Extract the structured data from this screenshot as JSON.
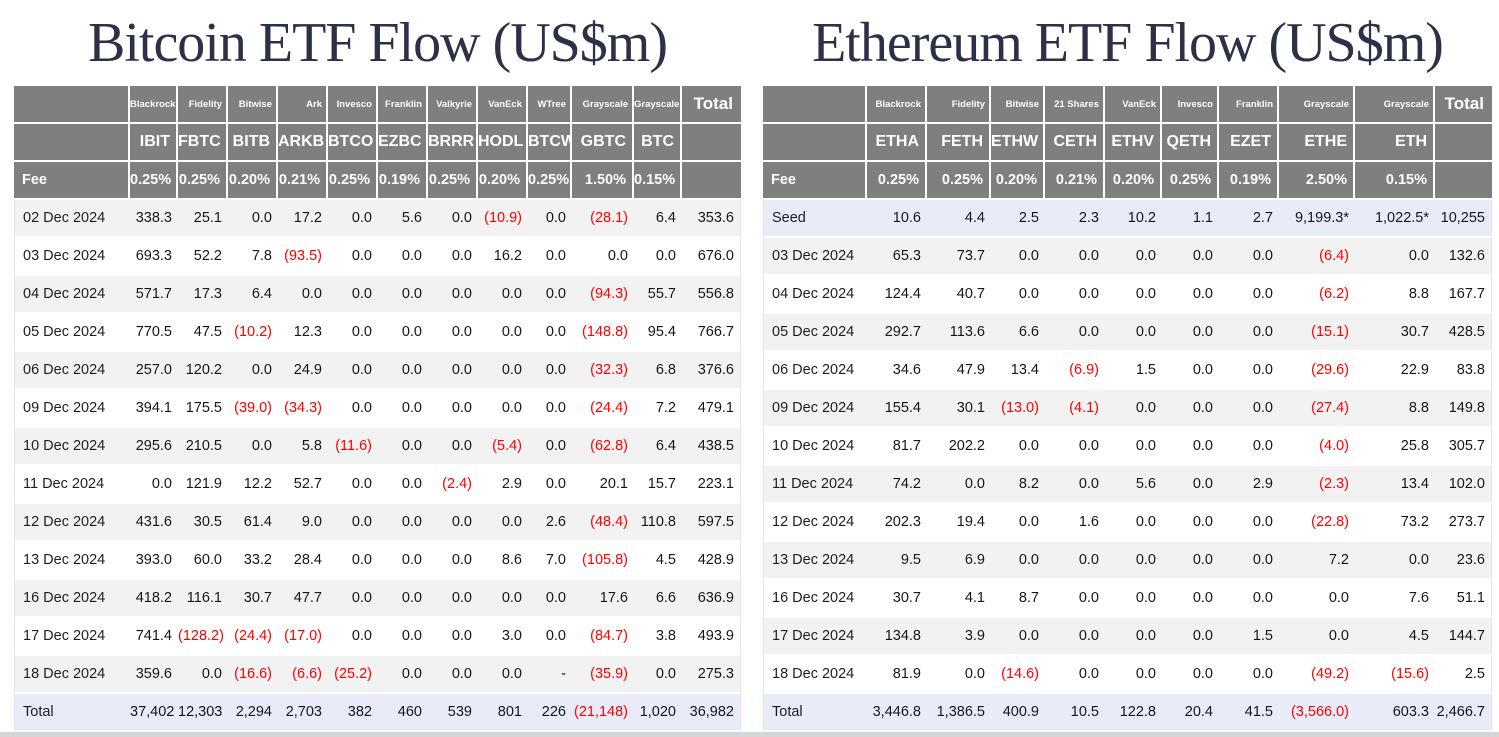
{
  "colors": {
    "title": "#2c3147",
    "header_bg": "#7f7f7f",
    "stripe_row": "#f2f2f2",
    "highlight_row": "#e8ecf8",
    "negative": "#ff0000",
    "divider": "#d5d5d5"
  },
  "chart_data": [
    {
      "type": "table",
      "title": "Bitcoin ETF Flow (US$m)",
      "header_rows": [
        [
          "",
          "Blackrock",
          "Fidelity",
          "Bitwise",
          "Ark",
          "Invesco",
          "Franklin",
          "Valkyrie",
          "VanEck",
          "WTree",
          "Grayscale",
          "Grayscale",
          "Total"
        ],
        [
          "",
          "IBIT",
          "FBTC",
          "BITB",
          "ARKB",
          "BTCO",
          "EZBC",
          "BRRR",
          "HODL",
          "BTCW",
          "GBTC",
          "BTC",
          ""
        ],
        [
          "Fee",
          "0.25%",
          "0.25%",
          "0.20%",
          "0.21%",
          "0.25%",
          "0.19%",
          "0.25%",
          "0.20%",
          "0.25%",
          "1.50%",
          "0.15%",
          ""
        ]
      ],
      "rows": [
        {
          "label": "02 Dec 2024",
          "values": [
            "338.3",
            "25.1",
            "0.0",
            "17.2",
            "0.0",
            "5.6",
            "0.0",
            "(10.9)",
            "0.0",
            "(28.1)",
            "6.4",
            "353.6"
          ]
        },
        {
          "label": "03 Dec 2024",
          "values": [
            "693.3",
            "52.2",
            "7.8",
            "(93.5)",
            "0.0",
            "0.0",
            "0.0",
            "16.2",
            "0.0",
            "0.0",
            "0.0",
            "676.0"
          ]
        },
        {
          "label": "04 Dec 2024",
          "values": [
            "571.7",
            "17.3",
            "6.4",
            "0.0",
            "0.0",
            "0.0",
            "0.0",
            "0.0",
            "0.0",
            "(94.3)",
            "55.7",
            "556.8"
          ]
        },
        {
          "label": "05 Dec 2024",
          "values": [
            "770.5",
            "47.5",
            "(10.2)",
            "12.3",
            "0.0",
            "0.0",
            "0.0",
            "0.0",
            "0.0",
            "(148.8)",
            "95.4",
            "766.7"
          ]
        },
        {
          "label": "06 Dec 2024",
          "values": [
            "257.0",
            "120.2",
            "0.0",
            "24.9",
            "0.0",
            "0.0",
            "0.0",
            "0.0",
            "0.0",
            "(32.3)",
            "6.8",
            "376.6"
          ]
        },
        {
          "label": "09 Dec 2024",
          "values": [
            "394.1",
            "175.5",
            "(39.0)",
            "(34.3)",
            "0.0",
            "0.0",
            "0.0",
            "0.0",
            "0.0",
            "(24.4)",
            "7.2",
            "479.1"
          ]
        },
        {
          "label": "10 Dec 2024",
          "values": [
            "295.6",
            "210.5",
            "0.0",
            "5.8",
            "(11.6)",
            "0.0",
            "0.0",
            "(5.4)",
            "0.0",
            "(62.8)",
            "6.4",
            "438.5"
          ]
        },
        {
          "label": "11 Dec 2024",
          "values": [
            "0.0",
            "121.9",
            "12.2",
            "52.7",
            "0.0",
            "0.0",
            "(2.4)",
            "2.9",
            "0.0",
            "20.1",
            "15.7",
            "223.1"
          ]
        },
        {
          "label": "12 Dec 2024",
          "values": [
            "431.6",
            "30.5",
            "61.4",
            "9.0",
            "0.0",
            "0.0",
            "0.0",
            "0.0",
            "2.6",
            "(48.4)",
            "110.8",
            "597.5"
          ]
        },
        {
          "label": "13 Dec 2024",
          "values": [
            "393.0",
            "60.0",
            "33.2",
            "28.4",
            "0.0",
            "0.0",
            "0.0",
            "8.6",
            "7.0",
            "(105.8)",
            "4.5",
            "428.9"
          ]
        },
        {
          "label": "16 Dec 2024",
          "values": [
            "418.2",
            "116.1",
            "30.7",
            "47.7",
            "0.0",
            "0.0",
            "0.0",
            "0.0",
            "0.0",
            "17.6",
            "6.6",
            "636.9"
          ]
        },
        {
          "label": "17 Dec 2024",
          "values": [
            "741.4",
            "(128.2)",
            "(24.4)",
            "(17.0)",
            "0.0",
            "0.0",
            "0.0",
            "3.0",
            "0.0",
            "(84.7)",
            "3.8",
            "493.9"
          ]
        },
        {
          "label": "18 Dec 2024",
          "values": [
            "359.6",
            "0.0",
            "(16.6)",
            "(6.6)",
            "(25.2)",
            "0.0",
            "0.0",
            "0.0",
            "-",
            "(35.9)",
            "0.0",
            "275.3"
          ]
        }
      ],
      "total_row": {
        "label": "Total",
        "values": [
          "37,402",
          "12,303",
          "2,294",
          "2,703",
          "382",
          "460",
          "539",
          "801",
          "226",
          "(21,148)",
          "1,020",
          "36,982"
        ]
      }
    },
    {
      "type": "table",
      "title": "Ethereum ETF Flow (US$m)",
      "header_rows": [
        [
          "",
          "Blackrock",
          "Fidelity",
          "Bitwise",
          "21 Shares",
          "VanEck",
          "Invesco",
          "Franklin",
          "Grayscale",
          "Grayscale",
          "Total"
        ],
        [
          "",
          "ETHA",
          "FETH",
          "ETHW",
          "CETH",
          "ETHV",
          "QETH",
          "EZET",
          "ETHE",
          "ETH",
          ""
        ],
        [
          "Fee",
          "0.25%",
          "0.25%",
          "0.20%",
          "0.21%",
          "0.20%",
          "0.25%",
          "0.19%",
          "2.50%",
          "0.15%",
          ""
        ]
      ],
      "rows": [
        {
          "label": "Seed",
          "values": [
            "10.6",
            "4.4",
            "2.5",
            "2.3",
            "10.2",
            "1.1",
            "2.7",
            "9,199.3*",
            "1,022.5*",
            "10,255"
          ]
        },
        {
          "label": "03 Dec 2024",
          "values": [
            "65.3",
            "73.7",
            "0.0",
            "0.0",
            "0.0",
            "0.0",
            "0.0",
            "(6.4)",
            "0.0",
            "132.6"
          ]
        },
        {
          "label": "04 Dec 2024",
          "values": [
            "124.4",
            "40.7",
            "0.0",
            "0.0",
            "0.0",
            "0.0",
            "0.0",
            "(6.2)",
            "8.8",
            "167.7"
          ]
        },
        {
          "label": "05 Dec 2024",
          "values": [
            "292.7",
            "113.6",
            "6.6",
            "0.0",
            "0.0",
            "0.0",
            "0.0",
            "(15.1)",
            "30.7",
            "428.5"
          ]
        },
        {
          "label": "06 Dec 2024",
          "values": [
            "34.6",
            "47.9",
            "13.4",
            "(6.9)",
            "1.5",
            "0.0",
            "0.0",
            "(29.6)",
            "22.9",
            "83.8"
          ]
        },
        {
          "label": "09 Dec 2024",
          "values": [
            "155.4",
            "30.1",
            "(13.0)",
            "(4.1)",
            "0.0",
            "0.0",
            "0.0",
            "(27.4)",
            "8.8",
            "149.8"
          ]
        },
        {
          "label": "10 Dec 2024",
          "values": [
            "81.7",
            "202.2",
            "0.0",
            "0.0",
            "0.0",
            "0.0",
            "0.0",
            "(4.0)",
            "25.8",
            "305.7"
          ]
        },
        {
          "label": "11 Dec 2024",
          "values": [
            "74.2",
            "0.0",
            "8.2",
            "0.0",
            "5.6",
            "0.0",
            "2.9",
            "(2.3)",
            "13.4",
            "102.0"
          ]
        },
        {
          "label": "12 Dec 2024",
          "values": [
            "202.3",
            "19.4",
            "0.0",
            "1.6",
            "0.0",
            "0.0",
            "0.0",
            "(22.8)",
            "73.2",
            "273.7"
          ]
        },
        {
          "label": "13 Dec 2024",
          "values": [
            "9.5",
            "6.9",
            "0.0",
            "0.0",
            "0.0",
            "0.0",
            "0.0",
            "7.2",
            "0.0",
            "23.6"
          ]
        },
        {
          "label": "16 Dec 2024",
          "values": [
            "30.7",
            "4.1",
            "8.7",
            "0.0",
            "0.0",
            "0.0",
            "0.0",
            "0.0",
            "7.6",
            "51.1"
          ]
        },
        {
          "label": "17 Dec 2024",
          "values": [
            "134.8",
            "3.9",
            "0.0",
            "0.0",
            "0.0",
            "0.0",
            "1.5",
            "0.0",
            "4.5",
            "144.7"
          ]
        },
        {
          "label": "18 Dec 2024",
          "values": [
            "81.9",
            "0.0",
            "(14.6)",
            "0.0",
            "0.0",
            "0.0",
            "0.0",
            "(49.2)",
            "(15.6)",
            "2.5"
          ]
        }
      ],
      "total_row": {
        "label": "Total",
        "values": [
          "3,446.8",
          "1,386.5",
          "400.9",
          "10.5",
          "122.8",
          "20.4",
          "41.5",
          "(3,566.0)",
          "603.3",
          "2,466.7"
        ]
      }
    }
  ]
}
